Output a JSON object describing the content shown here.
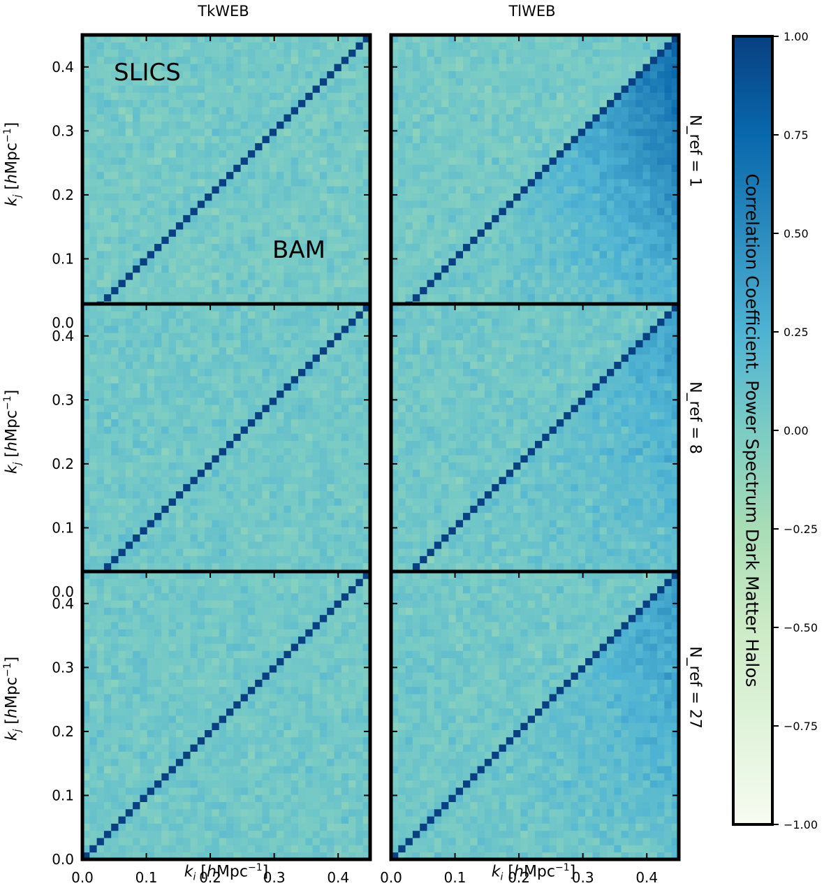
{
  "column_titles": [
    "TkWEB",
    "TlWEB"
  ],
  "row_labels": [
    "N_ref = 1",
    "N_ref = 8",
    "N_ref = 27"
  ],
  "annotations": {
    "top_label": "SLICS",
    "bottom_label": "BAM"
  },
  "axis_text": {
    "ylabel": {
      "var": "k",
      "sub": "j",
      "open": "[",
      "h": "h",
      "unit": "Mpc",
      "exp": "−1",
      "close": "]"
    },
    "xlabel": {
      "var": "k",
      "sub": "i",
      "open": "[",
      "h": "h",
      "unit": "Mpc",
      "exp": "−1",
      "close": "]"
    }
  },
  "colorbar": {
    "label": "Correlation Coefficient. Power Spectrum Dark Matter Halos",
    "ticks": [
      "1.00",
      "0.75",
      "0.50",
      "0.25",
      "0.00",
      "−0.25",
      "−0.50",
      "−0.75",
      "−1.00"
    ],
    "tick_values": [
      1.0,
      0.75,
      0.5,
      0.25,
      0.0,
      -0.25,
      -0.5,
      -0.75,
      -1.0
    ],
    "colormap": "GnBu",
    "colors": [
      "#f7fcf0",
      "#e0f3db",
      "#ccebc5",
      "#a8ddb5",
      "#7bccc4",
      "#4eb3d3",
      "#2b8cbe",
      "#0868ac",
      "#084081"
    ]
  },
  "chart_data": {
    "type": "heatmap",
    "title": "",
    "xlabel": "k_i [hMpc^-1]",
    "ylabel": "k_j [hMpc^-1]",
    "xlim": [
      0.0,
      0.45
    ],
    "ylim": [
      0.0,
      0.45
    ],
    "xticks": [
      "0.0",
      "0.1",
      "0.2",
      "0.3",
      "0.4"
    ],
    "yticks": [
      "0.0",
      "0.1",
      "0.2",
      "0.3",
      "0.4"
    ],
    "tick_values": [
      0.0,
      0.1,
      0.2,
      0.3,
      0.4
    ],
    "n_bins": 40,
    "vmin": -1.0,
    "vmax": 1.0,
    "diagonal_value": 1.0,
    "panels": [
      {
        "column": "TkWEB",
        "n_ref": 1,
        "upper_triangle": "SLICS",
        "lower_triangle": "BAM",
        "background_mean": 0.03,
        "noise": 0.15,
        "corr_peak": 0.0
      },
      {
        "column": "TlWEB",
        "n_ref": 1,
        "upper_triangle": "SLICS",
        "lower_triangle": "BAM",
        "background_mean": 0.03,
        "noise": 0.15,
        "corr_peak": 0.75
      },
      {
        "column": "TkWEB",
        "n_ref": 8,
        "upper_triangle": "SLICS",
        "lower_triangle": "BAM",
        "background_mean": 0.05,
        "noise": 0.15,
        "corr_peak": 0.0
      },
      {
        "column": "TlWEB",
        "n_ref": 8,
        "upper_triangle": "SLICS",
        "lower_triangle": "BAM",
        "background_mean": 0.05,
        "noise": 0.15,
        "corr_peak": 0.3
      },
      {
        "column": "TkWEB",
        "n_ref": 27,
        "upper_triangle": "SLICS",
        "lower_triangle": "BAM",
        "background_mean": 0.05,
        "noise": 0.15,
        "corr_peak": 0.0
      },
      {
        "column": "TlWEB",
        "n_ref": 27,
        "upper_triangle": "SLICS",
        "lower_triangle": "BAM",
        "background_mean": 0.05,
        "noise": 0.15,
        "corr_peak": 0.35
      }
    ]
  }
}
